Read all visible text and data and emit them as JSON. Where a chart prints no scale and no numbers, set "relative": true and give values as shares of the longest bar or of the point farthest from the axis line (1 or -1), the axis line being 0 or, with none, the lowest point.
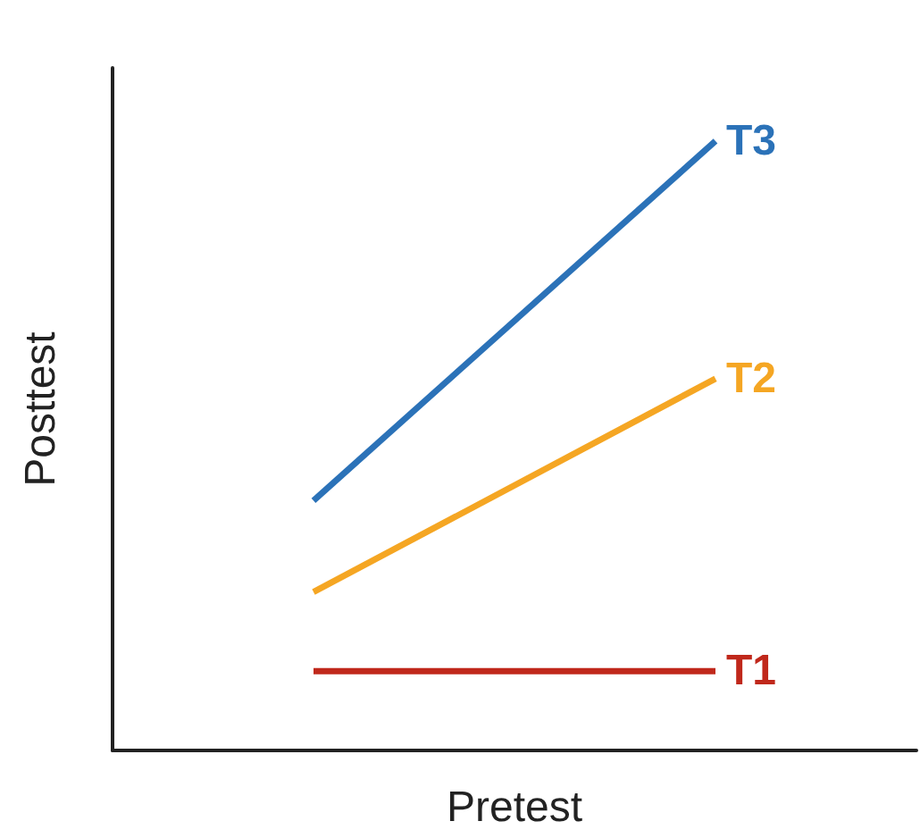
{
  "chart_data": {
    "type": "line",
    "xlabel": "Pretest",
    "ylabel": "Posttest",
    "categories": [
      null,
      null
    ],
    "relative": true,
    "legend": false,
    "grid": false,
    "marker": "none",
    "line_style": "solid",
    "series": [
      {
        "name": "T3",
        "color": "#2b72b8",
        "values": [
          0.41,
          1
        ]
      },
      {
        "name": "T2",
        "color": "#f5a623",
        "values": [
          0.26,
          0.61
        ]
      },
      {
        "name": "T1",
        "color": "#c0281b",
        "values": [
          0.13,
          0.13
        ]
      }
    ]
  }
}
